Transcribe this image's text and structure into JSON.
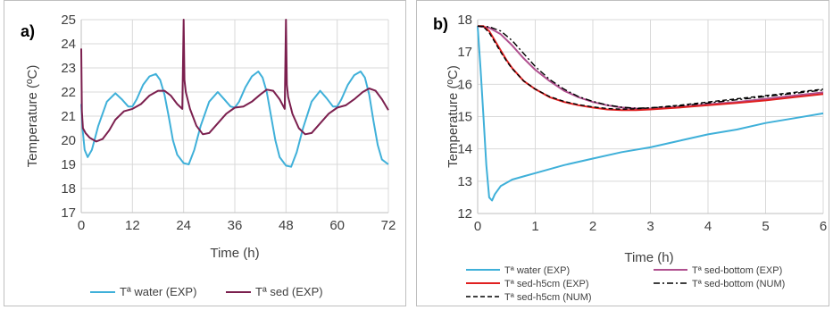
{
  "chart_data": [
    {
      "type": "line",
      "panel_label": "a)",
      "xlabel": "Time (h)",
      "ylabel": "Temperature (ºC)",
      "xlim": [
        0,
        72
      ],
      "ylim": [
        17,
        25
      ],
      "xticks": [
        0,
        12,
        24,
        36,
        48,
        60,
        72
      ],
      "yticks": [
        17,
        18,
        19,
        20,
        21,
        22,
        23,
        24,
        25
      ],
      "grid": true,
      "legend_position": "bottom",
      "series": [
        {
          "name": "Tª water (EXP)",
          "color": "#3fb0d9",
          "x": [
            0,
            0.3,
            0.8,
            1.5,
            2.5,
            4,
            6,
            8,
            9.5,
            11,
            12,
            13,
            14.5,
            16,
            17.5,
            18.5,
            19.5,
            20.5,
            21.5,
            22.5,
            24,
            25.2,
            26.5,
            28,
            30,
            32,
            33.5,
            35,
            36,
            37,
            38.5,
            40,
            41.5,
            42.5,
            43.5,
            44.5,
            45.5,
            46.5,
            48,
            49.2,
            50.5,
            52,
            54,
            56,
            57.5,
            59,
            60,
            61,
            62.5,
            64,
            65.5,
            66.5,
            67.5,
            68.5,
            69.5,
            70.5,
            72
          ],
          "y": [
            21.5,
            20.5,
            19.6,
            19.3,
            19.6,
            20.6,
            21.6,
            21.95,
            21.7,
            21.4,
            21.4,
            21.7,
            22.3,
            22.65,
            22.75,
            22.5,
            21.9,
            21.0,
            20.0,
            19.4,
            19.05,
            19.0,
            19.6,
            20.6,
            21.6,
            22.0,
            21.7,
            21.4,
            21.35,
            21.6,
            22.2,
            22.65,
            22.85,
            22.6,
            22.0,
            21.0,
            20.0,
            19.3,
            18.95,
            18.9,
            19.5,
            20.5,
            21.6,
            22.05,
            21.75,
            21.4,
            21.4,
            21.7,
            22.3,
            22.7,
            22.85,
            22.6,
            21.9,
            20.8,
            19.8,
            19.2,
            19.0
          ]
        },
        {
          "name": "Tª sed (EXP)",
          "color": "#7b1f4e",
          "x": [
            0,
            0.15,
            0.4,
            1,
            2,
            3.5,
            5,
            6.5,
            8,
            10,
            12,
            14,
            16,
            18,
            19.5,
            21,
            22.5,
            23.7,
            24,
            24.2,
            24.5,
            25.5,
            27,
            28.5,
            30,
            32,
            34,
            36,
            38,
            40,
            42,
            43.5,
            45,
            46.5,
            47.7,
            48,
            48.2,
            48.5,
            49.5,
            51,
            52.5,
            54,
            56,
            58,
            60,
            62,
            64,
            66,
            67.5,
            69,
            70.5,
            72
          ],
          "y": [
            23.8,
            21.2,
            20.5,
            20.3,
            20.1,
            19.95,
            20.05,
            20.4,
            20.85,
            21.2,
            21.3,
            21.5,
            21.85,
            22.05,
            22.05,
            21.85,
            21.5,
            21.3,
            25.0,
            22.5,
            22.0,
            21.3,
            20.6,
            20.25,
            20.3,
            20.7,
            21.1,
            21.35,
            21.4,
            21.6,
            21.9,
            22.1,
            22.05,
            21.7,
            21.3,
            25.0,
            22.3,
            21.8,
            21.1,
            20.5,
            20.25,
            20.3,
            20.7,
            21.1,
            21.35,
            21.45,
            21.7,
            22.0,
            22.15,
            22.05,
            21.7,
            21.25
          ]
        }
      ]
    },
    {
      "type": "line",
      "panel_label": "b)",
      "xlabel": "Time (h)",
      "ylabel": "Temperature (ºC)",
      "xlim": [
        0,
        6
      ],
      "ylim": [
        12,
        18
      ],
      "xticks": [
        0,
        1,
        2,
        3,
        4,
        5,
        6
      ],
      "yticks": [
        12,
        13,
        14,
        15,
        16,
        17,
        18
      ],
      "grid": true,
      "legend_position": "bottom",
      "series": [
        {
          "name": "Tª water (EXP)",
          "color": "#3fb0d9",
          "dash": "solid",
          "x": [
            0,
            0.05,
            0.1,
            0.15,
            0.2,
            0.25,
            0.3,
            0.4,
            0.5,
            0.6,
            0.8,
            1,
            1.5,
            2,
            2.5,
            3,
            3.5,
            4,
            4.5,
            5,
            5.5,
            6
          ],
          "y": [
            17.8,
            16.5,
            15.0,
            13.5,
            12.5,
            12.4,
            12.6,
            12.85,
            12.95,
            13.05,
            13.15,
            13.25,
            13.5,
            13.7,
            13.9,
            14.05,
            14.25,
            14.45,
            14.6,
            14.8,
            14.95,
            15.1
          ]
        },
        {
          "name": "Tª sed-bottom (EXP)",
          "color": "#b0508f",
          "dash": "solid",
          "x": [
            0,
            0.2,
            0.4,
            0.6,
            0.8,
            1,
            1.25,
            1.5,
            1.75,
            2,
            2.25,
            2.5,
            2.75,
            3,
            3.5,
            4,
            4.5,
            5,
            5.5,
            6
          ],
          "y": [
            17.8,
            17.75,
            17.55,
            17.2,
            16.8,
            16.45,
            16.1,
            15.8,
            15.6,
            15.45,
            15.35,
            15.28,
            15.25,
            15.25,
            15.3,
            15.38,
            15.45,
            15.55,
            15.65,
            15.75
          ]
        },
        {
          "name": "Tª sed-h5cm (EXP)",
          "color": "#e02020",
          "dash": "solid",
          "x": [
            0,
            0.1,
            0.2,
            0.3,
            0.4,
            0.5,
            0.6,
            0.8,
            1,
            1.25,
            1.5,
            1.75,
            2,
            2.25,
            2.5,
            2.75,
            3,
            3.5,
            4,
            4.5,
            5,
            5.5,
            6
          ],
          "y": [
            17.8,
            17.8,
            17.65,
            17.35,
            17.05,
            16.75,
            16.5,
            16.1,
            15.85,
            15.6,
            15.45,
            15.35,
            15.28,
            15.22,
            15.2,
            15.2,
            15.22,
            15.28,
            15.35,
            15.42,
            15.5,
            15.6,
            15.7
          ]
        },
        {
          "name": "Tª sed-bottom (NUM)",
          "color": "#000000",
          "dash": "dashdot",
          "x": [
            0,
            0.2,
            0.4,
            0.6,
            0.8,
            1,
            1.25,
            1.5,
            1.75,
            2,
            2.25,
            2.5,
            2.75,
            3,
            3.5,
            4,
            4.5,
            5,
            5.5,
            6
          ],
          "y": [
            17.8,
            17.78,
            17.65,
            17.35,
            16.95,
            16.55,
            16.15,
            15.85,
            15.62,
            15.47,
            15.36,
            15.29,
            15.26,
            15.27,
            15.33,
            15.42,
            15.52,
            15.62,
            15.72,
            15.82
          ]
        },
        {
          "name": "Tª sed-h5cm (NUM)",
          "color": "#000000",
          "dash": "dashed",
          "x": [
            0,
            0.1,
            0.2,
            0.3,
            0.4,
            0.5,
            0.6,
            0.8,
            1,
            1.25,
            1.5,
            1.75,
            2,
            2.25,
            2.5,
            2.75,
            3,
            3.5,
            4,
            4.5,
            5,
            5.5,
            6
          ],
          "y": [
            17.8,
            17.78,
            17.6,
            17.3,
            17.0,
            16.72,
            16.48,
            16.1,
            15.85,
            15.62,
            15.47,
            15.37,
            15.3,
            15.25,
            15.23,
            15.24,
            15.27,
            15.35,
            15.45,
            15.55,
            15.65,
            15.75,
            15.85
          ]
        }
      ]
    }
  ]
}
